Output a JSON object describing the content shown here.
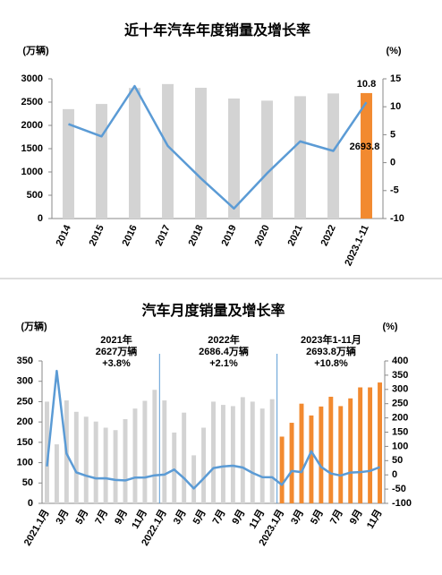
{
  "chart_data": [
    {
      "type": "combo",
      "title": "近十年汽车年度销量及增长率",
      "y_label": "(万辆)",
      "y2_label": "(%)",
      "categories": [
        "2014",
        "2015",
        "2016",
        "2017",
        "2018",
        "2019",
        "2020",
        "2021",
        "2022",
        "2023.1-11"
      ],
      "ylim": [
        0,
        3000
      ],
      "yticks": [
        0,
        500,
        1000,
        1500,
        2000,
        2500,
        3000
      ],
      "y2lim": [
        -10,
        15
      ],
      "y2ticks": [
        -10,
        -5,
        0,
        5,
        10,
        15
      ],
      "data_labels": "last",
      "series": [
        {
          "type": "bar",
          "colors": [
            "#d3d3d3",
            "#d3d3d3",
            "#d3d3d3",
            "#d3d3d3",
            "#d3d3d3",
            "#d3d3d3",
            "#d3d3d3",
            "#d3d3d3",
            "#d3d3d3",
            "#f28a30"
          ],
          "values": [
            2349,
            2460,
            2803,
            2888,
            2808,
            2577,
            2531,
            2627,
            2686,
            2693.8
          ]
        },
        {
          "type": "line",
          "axis": "y2",
          "color": "#5b9bd5",
          "values": [
            6.9,
            4.7,
            13.7,
            3.0,
            -2.8,
            -8.2,
            -1.9,
            3.8,
            2.1,
            10.8
          ]
        }
      ]
    },
    {
      "type": "combo",
      "title": "汽车月度销量及增长率",
      "y_label": "(万辆)",
      "y2_label": "(%)",
      "categories": [
        "2021.1月",
        null,
        "3月",
        null,
        "5月",
        null,
        "7月",
        null,
        "9月",
        null,
        "11月",
        null,
        "2022.1月",
        null,
        "3月",
        null,
        "5月",
        null,
        "7月",
        null,
        "9月",
        null,
        "11月",
        null,
        "2023.1月",
        null,
        "3月",
        null,
        "5月",
        null,
        "7月",
        null,
        "9月",
        null,
        "11月"
      ],
      "annotations": [
        [
          "2021年",
          "2627万辆",
          "+3.8%"
        ],
        [
          "2022年",
          "2686.4万辆",
          "+2.1%"
        ],
        [
          "2023年1-11月",
          "2693.8万辆",
          "+10.8%"
        ]
      ],
      "ylim": [
        0,
        350
      ],
      "yticks": [
        0,
        50,
        100,
        150,
        200,
        250,
        300,
        350
      ],
      "y2lim": [
        -100,
        400
      ],
      "y2ticks": [
        -100,
        -50,
        0,
        50,
        100,
        150,
        200,
        250,
        300,
        350,
        400
      ],
      "series": [
        {
          "type": "bar",
          "colors": [
            "#d3d3d3",
            "#d3d3d3",
            "#d3d3d3",
            "#d3d3d3",
            "#d3d3d3",
            "#d3d3d3",
            "#d3d3d3",
            "#d3d3d3",
            "#d3d3d3",
            "#d3d3d3",
            "#d3d3d3",
            "#d3d3d3",
            "#d3d3d3",
            "#d3d3d3",
            "#d3d3d3",
            "#d3d3d3",
            "#d3d3d3",
            "#d3d3d3",
            "#d3d3d3",
            "#d3d3d3",
            "#d3d3d3",
            "#d3d3d3",
            "#d3d3d3",
            "#d3d3d3",
            "#f28a30",
            "#f28a30",
            "#f28a30",
            "#f28a30",
            "#f28a30",
            "#f28a30",
            "#f28a30",
            "#f28a30",
            "#f28a30",
            "#f28a30",
            "#f28a30"
          ],
          "values": [
            250,
            145,
            253,
            225,
            213,
            201,
            186,
            180,
            207,
            233,
            252,
            279,
            253,
            174,
            223,
            118,
            186,
            250,
            242,
            239,
            261,
            250,
            233,
            256,
            164,
            198,
            245,
            216,
            238,
            262,
            239,
            258,
            285,
            285,
            297
          ]
        },
        {
          "type": "line",
          "axis": "y2",
          "color": "#5b9bd5",
          "values": [
            29.9,
            365,
            74.9,
            8.6,
            -3.1,
            -12.4,
            -11.9,
            -17.8,
            -19.6,
            -9.4,
            -9.1,
            -1.6,
            0.9,
            18.7,
            -11.7,
            -47.6,
            -12.6,
            23.8,
            29.7,
            32.1,
            25.7,
            6.9,
            -7.9,
            -8.4,
            -35,
            13.5,
            9.7,
            82.7,
            27.9,
            4.8,
            -2.3,
            8.2,
            9.5,
            13.8,
            27.4
          ]
        }
      ]
    }
  ]
}
